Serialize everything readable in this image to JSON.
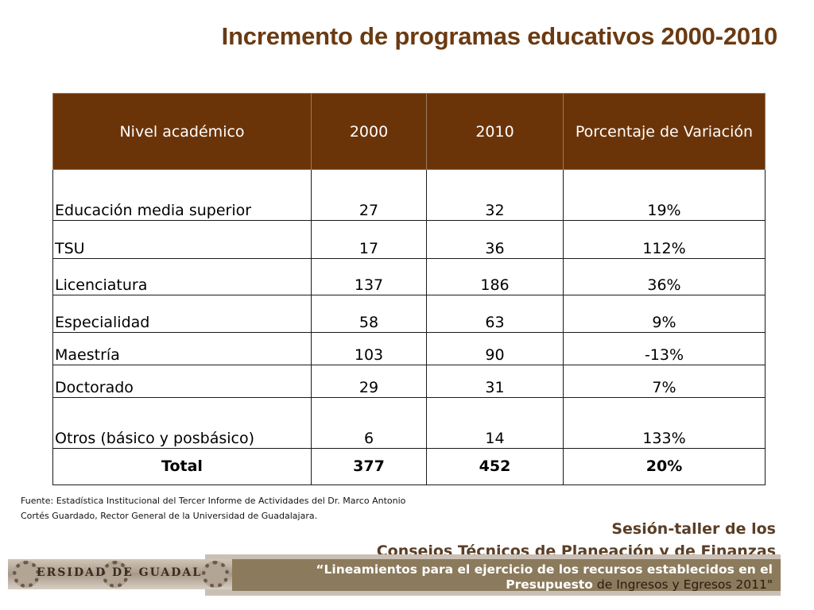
{
  "title": "Incremento de programas educativos 2000-2010",
  "table": {
    "headers": [
      "Nivel académico",
      "2000",
      "2010",
      "Porcentaje de Variación"
    ],
    "rows": [
      {
        "nivel": "Educación media superior",
        "y2000": "27",
        "y2010": "32",
        "variacion": "19%"
      },
      {
        "nivel": "TSU",
        "y2000": "17",
        "y2010": "36",
        "variacion": "112%"
      },
      {
        "nivel": "Licenciatura",
        "y2000": "137",
        "y2010": "186",
        "variacion": "36%"
      },
      {
        "nivel": "Especialidad",
        "y2000": "58",
        "y2010": "63",
        "variacion": "9%"
      },
      {
        "nivel": "Maestría",
        "y2000": "103",
        "y2010": "90",
        "variacion": "-13%"
      },
      {
        "nivel": "Doctorado",
        "y2000": "29",
        "y2010": "31",
        "variacion": "7%"
      },
      {
        "nivel": "Otros (básico y posbásico)",
        "y2000": "6",
        "y2010": "14",
        "variacion": "133%"
      }
    ],
    "total": {
      "label": "Total",
      "y2000": "377",
      "y2010": "452",
      "variacion": "20%"
    }
  },
  "source": {
    "line1": "Fuente: Estadística Institucional del Tercer Informe de Actividades del Dr. Marco Antonio",
    "line2": "Cortés Guardado, Rector General de la Universidad de Guadalajara."
  },
  "footer": {
    "session_line1": "Sesión-taller de los",
    "session_line2": "Consejos Técnicos de Planeación y de Finanzas",
    "quote_line1": "“Lineamientos para el ejercicio de los recursos establecidos en el",
    "quote_line2_bold": "Presupuesto",
    "quote_line2_rest": " de Ingresos y Egresos 2011\"",
    "seal_text": "ERSIDAD   DE GUADAL"
  },
  "colors": {
    "title": "#6b3a12",
    "header_bg": "#6b3408",
    "footer_brown": "#8b7a5c",
    "footer_gray": "#c9bfb3"
  }
}
